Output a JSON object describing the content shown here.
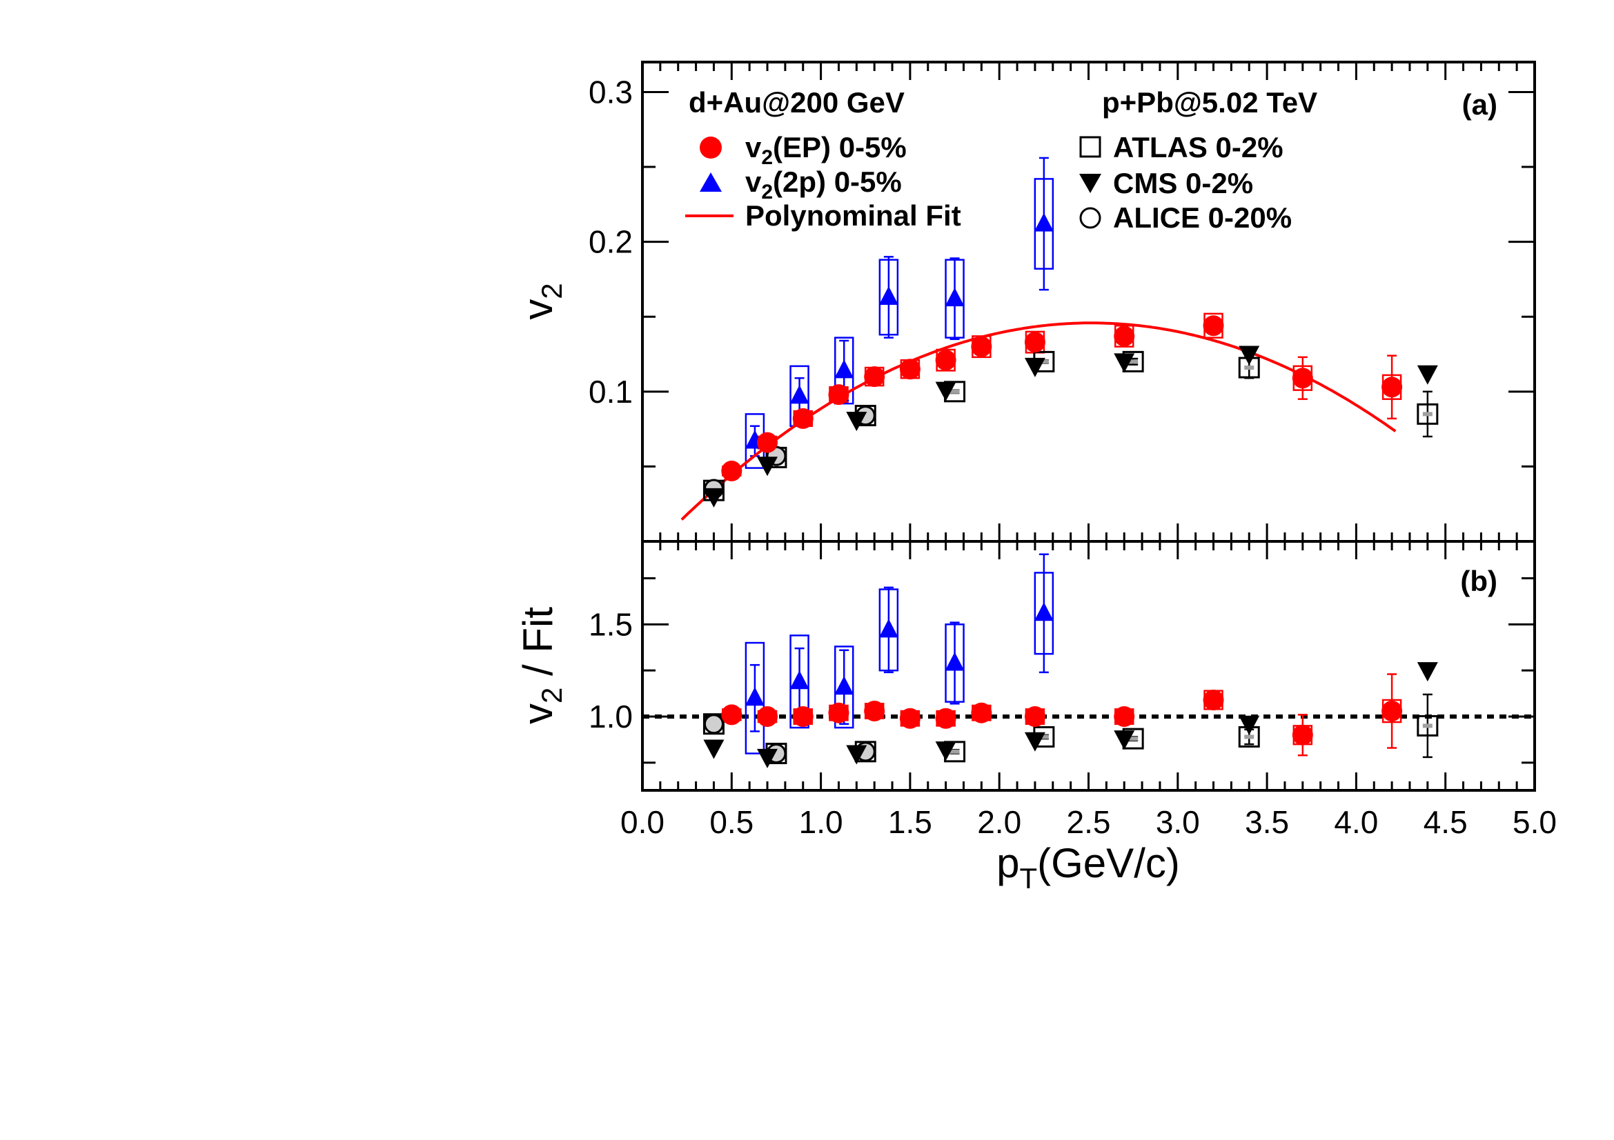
{
  "colors": {
    "ep": "#ff0000",
    "twop": "#0000ff",
    "black": "#000000",
    "gray_fill": "#d0d0d0",
    "lhc_dash": "#a0a0a0"
  },
  "panel_a": {
    "label": "(a)",
    "ylabel_main": "v",
    "ylabel_sub": "2",
    "yticks": [
      "0.1",
      "0.2",
      "0.3"
    ]
  },
  "panel_b": {
    "label": "(b)",
    "ylabel_main": "v",
    "ylabel_sub": "2",
    "ylabel_rest": " / Fit",
    "yticks": [
      "1.0",
      "1.5"
    ]
  },
  "xaxis": {
    "label_main": "p",
    "label_sub": "T",
    "label_rest": "(GeV/c)",
    "ticks": [
      "0.0",
      "0.5",
      "1.0",
      "1.5",
      "2.0",
      "2.5",
      "3.0",
      "3.5",
      "4.0",
      "4.5",
      "5.0"
    ]
  },
  "legend": {
    "left_header": "d+Au@200 GeV",
    "right_header": "p+Pb@5.02 TeV",
    "ep_main": "v",
    "ep_sub": "2",
    "ep_rest": "(EP) 0-5%",
    "twop_main": "v",
    "twop_sub": "2",
    "twop_rest": "(2p) 0-5%",
    "fit": "Polynominal Fit",
    "atlas": "ATLAS 0-2%",
    "cms": "CMS 0-2%",
    "alice": "ALICE 0-20%"
  },
  "chart_data": [
    {
      "panel": "a",
      "type": "scatter",
      "xlabel": "p_T(GeV/c)",
      "ylabel": "v_2",
      "xlim": [
        0.0,
        5.0
      ],
      "ylim": [
        0.0,
        0.32
      ],
      "fit": {
        "name": "Polynominal Fit",
        "x_range": [
          0.22,
          4.22
        ],
        "coefficients": [
          -0.0118,
          0.1253,
          -0.0249
        ]
      },
      "series": [
        {
          "name": "v2(EP) 0-5%",
          "marker": "circle",
          "color": "#ff0000",
          "x": [
            0.5,
            0.7,
            0.9,
            1.1,
            1.3,
            1.5,
            1.7,
            1.9,
            2.2,
            2.7,
            3.2,
            3.7,
            4.2
          ],
          "y": [
            0.047,
            0.066,
            0.082,
            0.098,
            0.11,
            0.115,
            0.121,
            0.13,
            0.133,
            0.137,
            0.144,
            0.109,
            0.103
          ],
          "sys": [
            0.003,
            0.004,
            0.005,
            0.005,
            0.006,
            0.006,
            0.007,
            0.007,
            0.007,
            0.007,
            0.008,
            0.008,
            0.008
          ],
          "stat": [
            0.001,
            0.002,
            0.002,
            0.002,
            0.002,
            0.002,
            0.003,
            0.003,
            0.003,
            0.003,
            0.005,
            0.014,
            0.021
          ]
        },
        {
          "name": "v2(2p) 0-5%",
          "marker": "triangle-up",
          "color": "#0000ff",
          "x": [
            0.63,
            0.88,
            1.13,
            1.38,
            1.75,
            2.25
          ],
          "y": [
            0.067,
            0.097,
            0.114,
            0.163,
            0.162,
            0.212
          ],
          "sys": [
            0.018,
            0.02,
            0.022,
            0.025,
            0.026,
            0.03
          ],
          "stat": [
            0.01,
            0.012,
            0.02,
            0.027,
            0.027,
            0.044
          ]
        },
        {
          "name": "ATLAS 0-2%",
          "marker": "open-square",
          "color": "#000000",
          "x": [
            0.4,
            0.75,
            1.25,
            1.75,
            2.25,
            2.75,
            3.4,
            4.4
          ],
          "y": [
            0.034,
            0.056,
            0.084,
            0.1,
            0.12,
            0.12,
            0.116,
            0.085
          ],
          "stat": [
            0.001,
            0.001,
            0.001,
            0.001,
            0.001,
            0.002,
            0.007,
            0.015
          ]
        },
        {
          "name": "CMS 0-2%",
          "marker": "triangle-down",
          "color": "#000000",
          "x": [
            0.4,
            0.7,
            1.2,
            1.7,
            2.2,
            2.7,
            3.4,
            4.4
          ],
          "y": [
            0.03,
            0.051,
            0.081,
            0.101,
            0.117,
            0.12,
            0.125,
            0.112
          ]
        },
        {
          "name": "ALICE 0-20%",
          "marker": "open-circle",
          "color": "#000000",
          "x": [
            0.4,
            0.75,
            1.25
          ],
          "y": [
            0.035,
            0.057,
            0.084
          ]
        }
      ]
    },
    {
      "panel": "b",
      "type": "scatter",
      "xlabel": "p_T(GeV/c)",
      "ylabel": "v_2 / Fit",
      "xlim": [
        0.0,
        5.0
      ],
      "ylim": [
        0.6,
        1.95
      ],
      "reference_line": 1.0,
      "series": [
        {
          "name": "v2(EP) 0-5%",
          "marker": "circle",
          "color": "#ff0000",
          "x": [
            0.5,
            0.7,
            0.9,
            1.1,
            1.3,
            1.5,
            1.7,
            1.9,
            2.2,
            2.7,
            3.2,
            3.7,
            4.2
          ],
          "y": [
            1.01,
            1.0,
            1.0,
            1.02,
            1.03,
            0.99,
            0.99,
            1.02,
            1.0,
            1.0,
            1.09,
            0.9,
            1.03
          ],
          "sys": [
            0.03,
            0.03,
            0.04,
            0.04,
            0.04,
            0.04,
            0.04,
            0.04,
            0.04,
            0.04,
            0.05,
            0.05,
            0.06
          ],
          "stat": [
            0.01,
            0.01,
            0.01,
            0.02,
            0.02,
            0.02,
            0.02,
            0.02,
            0.02,
            0.02,
            0.03,
            0.11,
            0.2
          ]
        },
        {
          "name": "v2(2p) 0-5%",
          "marker": "triangle-up",
          "color": "#0000ff",
          "x": [
            0.63,
            0.88,
            1.13,
            1.38,
            1.75,
            2.25
          ],
          "y": [
            1.1,
            1.19,
            1.16,
            1.47,
            1.29,
            1.56
          ],
          "sys": [
            0.3,
            0.25,
            0.22,
            0.22,
            0.21,
            0.22
          ],
          "stat": [
            0.18,
            0.18,
            0.2,
            0.23,
            0.22,
            0.32
          ]
        },
        {
          "name": "ATLAS 0-2%",
          "marker": "open-square",
          "color": "#000000",
          "x": [
            0.4,
            0.75,
            1.25,
            1.75,
            2.25,
            2.75,
            3.4,
            4.4
          ],
          "y": [
            0.96,
            0.8,
            0.81,
            0.81,
            0.89,
            0.88,
            0.89,
            0.95
          ],
          "stat": [
            0.01,
            0.01,
            0.01,
            0.01,
            0.01,
            0.01,
            0.04,
            0.17
          ]
        },
        {
          "name": "CMS 0-2%",
          "marker": "triangle-down",
          "color": "#000000",
          "x": [
            0.4,
            0.7,
            1.2,
            1.7,
            2.2,
            2.7,
            3.4,
            4.4
          ],
          "y": [
            0.83,
            0.78,
            0.8,
            0.82,
            0.87,
            0.88,
            0.96,
            1.25
          ]
        },
        {
          "name": "ALICE 0-20%",
          "marker": "open-circle",
          "color": "#000000",
          "x": [
            0.4,
            0.75,
            1.25
          ],
          "y": [
            0.96,
            0.8,
            0.81
          ]
        }
      ]
    }
  ]
}
